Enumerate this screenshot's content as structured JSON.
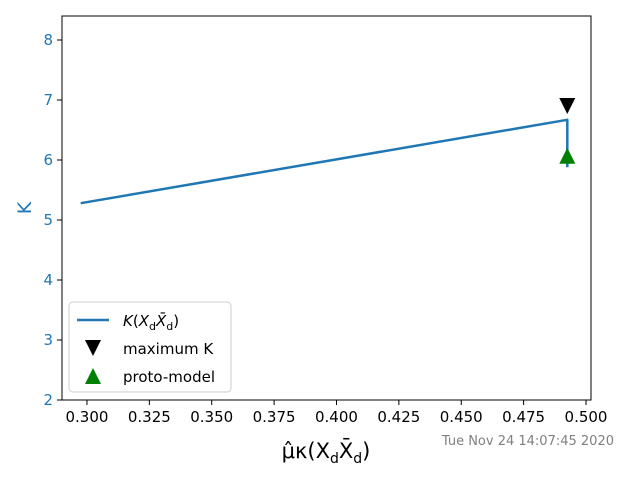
{
  "chart_data": {
    "type": "line",
    "xlabel": "μ̂κ(X_dX̄_d)",
    "ylabel": "K",
    "xlim": [
      0.29,
      0.502
    ],
    "ylim": [
      2,
      8.4
    ],
    "xticks": [
      0.3,
      0.325,
      0.35,
      0.375,
      0.4,
      0.425,
      0.45,
      0.475,
      0.5
    ],
    "xtick_labels": [
      "0.300",
      "0.325",
      "0.350",
      "0.375",
      "0.400",
      "0.425",
      "0.450",
      "0.475",
      "0.500"
    ],
    "yticks": [
      2,
      3,
      4,
      5,
      6,
      7,
      8
    ],
    "ytick_labels": [
      "2",
      "3",
      "4",
      "5",
      "6",
      "7",
      "8"
    ],
    "grid": false,
    "legend_position": "lower-left",
    "series": [
      {
        "name": "K(X_dX̄_d)",
        "kind": "line",
        "color": "#1f77b4",
        "x": [
          0.2975,
          0.4925,
          0.4925,
          0.4925
        ],
        "y": [
          5.28,
          6.67,
          6.67,
          5.88
        ]
      },
      {
        "name": "maximum K",
        "kind": "marker",
        "marker": "triangle-down",
        "color": "#000000",
        "x": [
          0.4925
        ],
        "y": [
          6.9
        ]
      },
      {
        "name": "proto-model",
        "kind": "marker",
        "marker": "triangle-up",
        "color": "#008000",
        "x": [
          0.4925
        ],
        "y": [
          6.07
        ]
      }
    ],
    "axis_label_color": "#1f77b4",
    "timestamp": "Tue Nov 24 14:07:45 2020"
  }
}
